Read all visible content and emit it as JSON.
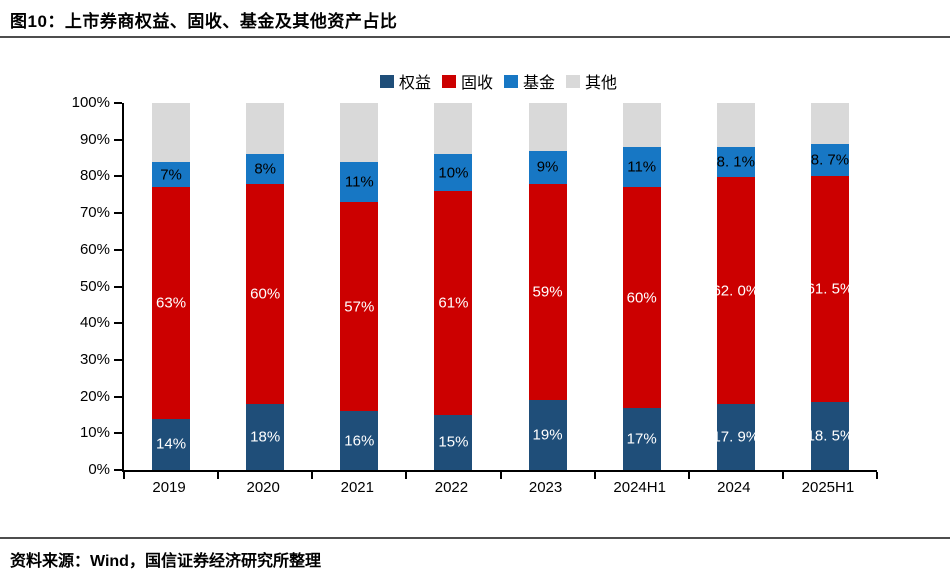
{
  "figure": {
    "title": "图10：上市券商权益、固收、基金及其他资产占比",
    "source": "资料来源：Wind，国信证券经济研究所整理"
  },
  "chart_data": {
    "type": "bar",
    "stacked": true,
    "normalized_to_100pct": true,
    "title": "上市券商权益、固收、基金及其他资产占比",
    "xlabel": "",
    "ylabel": "",
    "ylim": [
      0,
      100
    ],
    "grid": false,
    "legend_position": "top-center",
    "categories": [
      "2019",
      "2020",
      "2021",
      "2022",
      "2023",
      "2024H1",
      "2024",
      "2025H1"
    ],
    "yticks": [
      "0%",
      "10%",
      "20%",
      "30%",
      "40%",
      "50%",
      "60%",
      "70%",
      "80%",
      "90%",
      "100%"
    ],
    "series": [
      {
        "name": "权益",
        "color": "#1F4E79",
        "label_color": "#FFFFFF",
        "values": [
          14,
          18,
          16,
          15,
          19,
          17,
          17.9,
          18.5
        ],
        "labels": [
          "14%",
          "18%",
          "16%",
          "15%",
          "19%",
          "17%",
          "17. 9%",
          "18. 5%"
        ]
      },
      {
        "name": "固收",
        "color": "#CC0000",
        "label_color": "#FFFFFF",
        "values": [
          63,
          60,
          57,
          61,
          59,
          60,
          62,
          61.5
        ],
        "labels": [
          "63%",
          "60%",
          "57%",
          "61%",
          "59%",
          "60%",
          "62. 0%",
          "61. 5%"
        ]
      },
      {
        "name": "基金",
        "color": "#1777C4",
        "label_color": "#000000",
        "values": [
          7,
          8,
          11,
          10,
          9,
          11,
          8.1,
          8.7
        ],
        "labels": [
          "7%",
          "8%",
          "11%",
          "10%",
          "9%",
          "11%",
          "8. 1%",
          "8. 7%"
        ]
      },
      {
        "name": "其他",
        "color": "#D9D9D9",
        "label_color": "",
        "values": [
          16,
          14,
          16,
          14,
          13,
          12,
          12,
          11.3
        ],
        "labels": [
          "",
          "",
          "",
          "",
          "",
          "",
          "",
          ""
        ]
      }
    ]
  }
}
